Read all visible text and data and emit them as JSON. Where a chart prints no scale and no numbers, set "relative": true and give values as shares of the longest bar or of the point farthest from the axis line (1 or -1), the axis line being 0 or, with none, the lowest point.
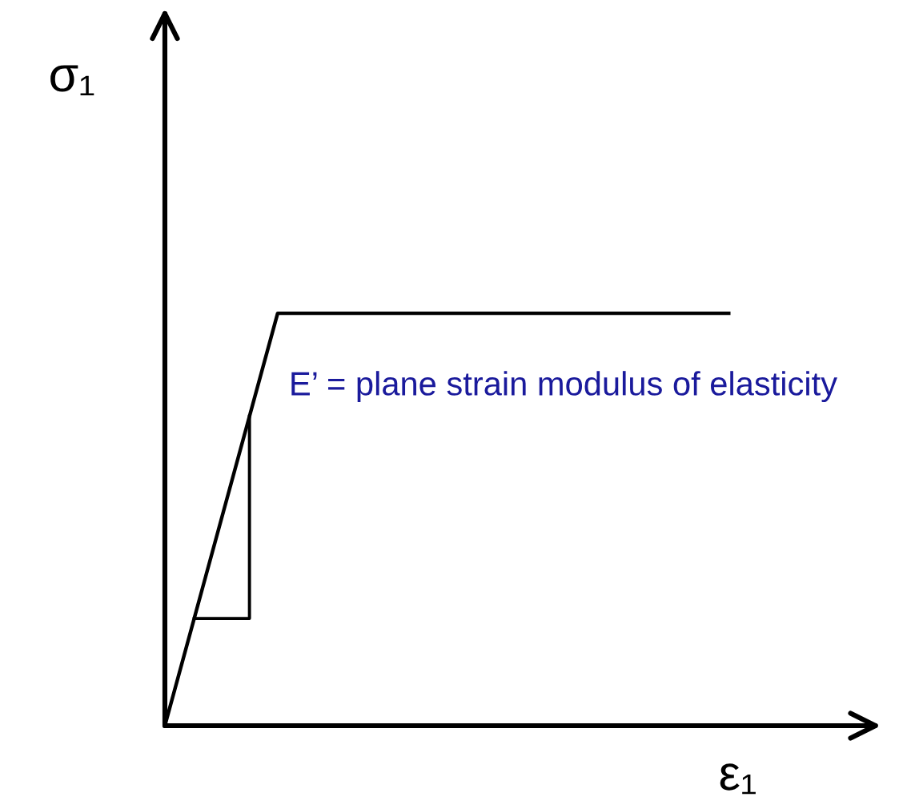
{
  "chart_data": {
    "type": "line",
    "relative": true,
    "xlabel": "ε₁",
    "ylabel": "σ₁",
    "legend": false,
    "marker": "none",
    "line_style": "solid",
    "annotations": [
      "E’ = plane strain modulus of elasticity"
    ],
    "categories": [
      null,
      null,
      null,
      null,
      null,
      null
    ],
    "series": [
      {
        "color": "#000000",
        "values": [
          0,
          1,
          1,
          1,
          1,
          1
        ]
      }
    ]
  }
}
